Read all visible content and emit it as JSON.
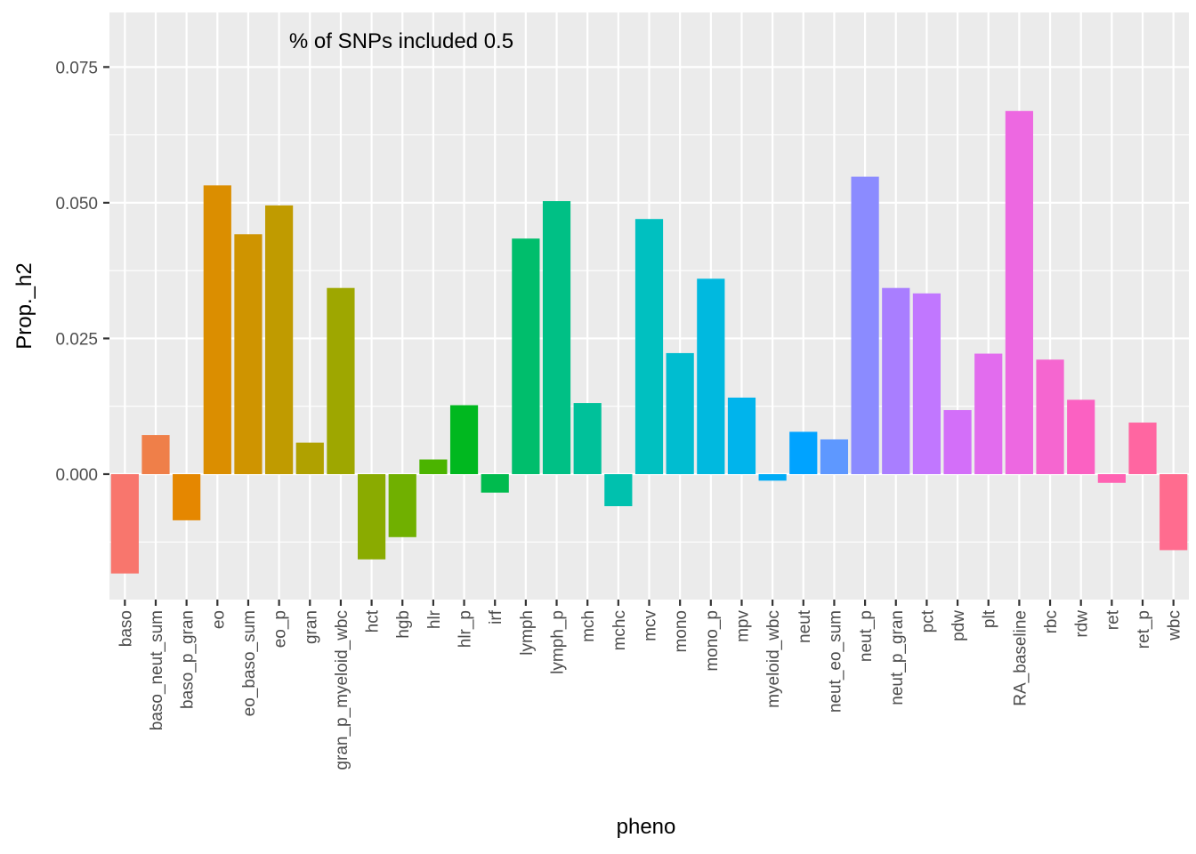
{
  "chart_data": {
    "type": "bar",
    "xlabel": "pheno",
    "ylabel": "Prop._h2",
    "annotation": "% of SNPs included 0.5",
    "ylim": [
      -0.0235,
      0.0845
    ],
    "yticks": [
      0.0,
      0.025,
      0.05,
      0.075
    ],
    "ytick_labels": [
      "0.000",
      "0.025",
      "0.050",
      "0.075"
    ],
    "grid": true,
    "legend": "none",
    "panel_background": "#ebebeb",
    "grid_color": "#ffffff",
    "categories": [
      "baso",
      "baso_neut_sum",
      "baso_p_gran",
      "eo",
      "eo_baso_sum",
      "eo_p",
      "gran",
      "gran_p_myeloid_wbc",
      "hct",
      "hgb",
      "hlr",
      "hlr_p",
      "irf",
      "lymph",
      "lymph_p",
      "mch",
      "mchc",
      "mcv",
      "mono",
      "mono_p",
      "mpv",
      "myeloid_wbc",
      "neut",
      "neut_eo_sum",
      "neut_p",
      "neut_p_gran",
      "pct",
      "pdw",
      "plt",
      "RA_baseline",
      "rbc",
      "rdw",
      "ret",
      "ret_p",
      "wbc"
    ],
    "values": [
      -0.0183,
      0.0072,
      -0.0085,
      0.0532,
      0.0442,
      0.0495,
      0.0058,
      0.0343,
      -0.0157,
      -0.0116,
      0.0027,
      0.0127,
      -0.0034,
      0.0434,
      0.0503,
      0.0131,
      -0.0059,
      0.047,
      0.0223,
      0.036,
      0.0141,
      -0.0012,
      0.0078,
      0.0064,
      0.0548,
      0.0343,
      0.0333,
      0.0118,
      0.0222,
      0.0669,
      0.0211,
      0.0137,
      -0.0016,
      0.0095,
      -0.014
    ],
    "colors": [
      "#F8766D",
      "#EF7F49",
      "#E58700",
      "#DB8E00",
      "#CF9400",
      "#C09B00",
      "#B0A100",
      "#9EA700",
      "#8AAB00",
      "#70B000",
      "#4BB400",
      "#00B81F",
      "#00BB4E",
      "#00BE6C",
      "#00C085",
      "#00C19A",
      "#00C1AE",
      "#00C0C0",
      "#00BDD0",
      "#00B9DF",
      "#00B4EC",
      "#00ACF6",
      "#00A3FF",
      "#5E98FF",
      "#8B8BFF",
      "#A97EFF",
      "#C177FF",
      "#D36FF9",
      "#E26CEE",
      "#ED68E1",
      "#F566D0",
      "#FB61C2",
      "#FF62B2",
      "#FF66A1",
      "#FF6C8F"
    ]
  }
}
